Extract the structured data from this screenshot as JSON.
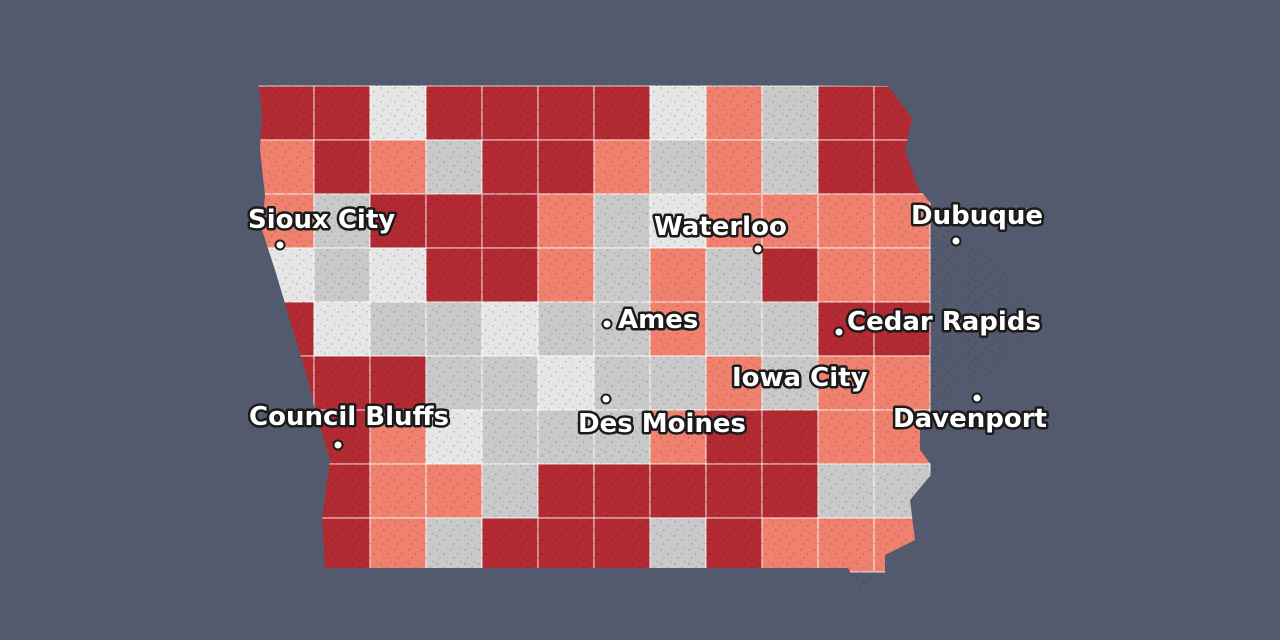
{
  "colors": {
    "background": "#545a6e",
    "dark": "#b22a32",
    "medium": "#f0816e",
    "gray": "#c9c9c9",
    "light": "#e6e6e6",
    "border": "#ffffff"
  },
  "county_grid": [
    "DDLDDDDLMGD",
    "MDMGDDMGMGD",
    "MGDDDMGLMMM",
    "LGLDDMGMGDM",
    "DLGGLGGMGGD",
    "DDDGGLGGMGM",
    "DDMLGGGMDDM",
    "MDMMGDDDDDG",
    "GDMGDDDGDMM"
  ],
  "cities": [
    {
      "name": "Sioux City"
    },
    {
      "name": "Waterloo"
    },
    {
      "name": "Dubuque"
    },
    {
      "name": "Ames"
    },
    {
      "name": "Cedar Rapids"
    },
    {
      "name": "Iowa City"
    },
    {
      "name": "Council Bluffs"
    },
    {
      "name": "Des Moines"
    },
    {
      "name": "Davenport"
    }
  ]
}
